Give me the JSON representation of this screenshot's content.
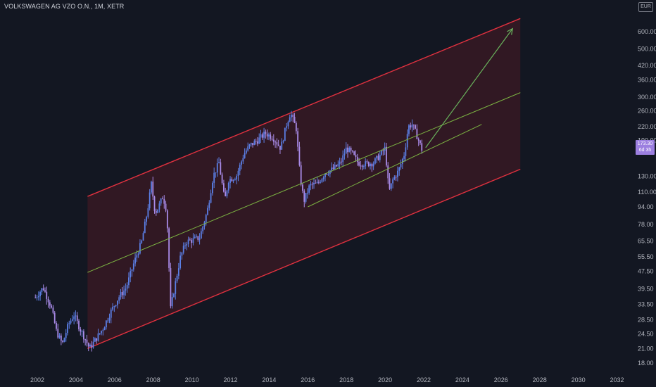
{
  "header": {
    "title": "VOLKSWAGEN AG VZO O.N., 1M, XETR",
    "currency": "EUR"
  },
  "last_price": {
    "value": "173.30",
    "countdown": "6d 3h"
  },
  "colors": {
    "background": "#131722",
    "candle": "#5b7fe6",
    "candle_hl": "#a98be8",
    "channel_line": "#e0313f",
    "channel_fill": "#4a1a24",
    "mid_line": "#7cb342",
    "arrow": "#69b25c",
    "axis_text": "#b2b5be",
    "badge": "#9c7fe0"
  },
  "chart_data": {
    "type": "candlestick",
    "title": "VOLKSWAGEN AG VZO O.N., 1M, XETR",
    "xlabel": "",
    "ylabel": "",
    "y_scale": "log",
    "ylim": [
      15.6,
      712
    ],
    "xlim": [
      2001.2,
      2033.2
    ],
    "x_ticks": [
      "2002",
      "2004",
      "2006",
      "2008",
      "2010",
      "2012",
      "2014",
      "2016",
      "2018",
      "2020",
      "2022",
      "2024",
      "2026",
      "2028",
      "2030",
      "2032"
    ],
    "y_ticks": [
      "18.00",
      "21.00",
      "24.50",
      "28.50",
      "33.50",
      "39.50",
      "47.50",
      "55.50",
      "65.50",
      "78.00",
      "94.00",
      "110.00",
      "130.00",
      "190.00",
      "220.00",
      "260.00",
      "300.00",
      "360.00",
      "420.00",
      "500.00",
      "600.00"
    ],
    "price_path": [
      [
        2001.9,
        36
      ],
      [
        2002.3,
        40
      ],
      [
        2002.7,
        33
      ],
      [
        2003.0,
        25
      ],
      [
        2003.3,
        22
      ],
      [
        2003.6,
        27
      ],
      [
        2003.9,
        30
      ],
      [
        2004.2,
        26
      ],
      [
        2004.5,
        23
      ],
      [
        2004.7,
        21
      ],
      [
        2005.0,
        23
      ],
      [
        2005.4,
        26
      ],
      [
        2005.8,
        31
      ],
      [
        2006.2,
        36
      ],
      [
        2006.6,
        40
      ],
      [
        2007.0,
        52
      ],
      [
        2007.4,
        65
      ],
      [
        2007.7,
        90
      ],
      [
        2007.9,
        120
      ],
      [
        2008.1,
        88
      ],
      [
        2008.3,
        95
      ],
      [
        2008.5,
        105
      ],
      [
        2008.7,
        90
      ],
      [
        2008.9,
        32
      ],
      [
        2009.1,
        40
      ],
      [
        2009.4,
        55
      ],
      [
        2009.7,
        65
      ],
      [
        2010.0,
        66
      ],
      [
        2010.4,
        68
      ],
      [
        2010.8,
        90
      ],
      [
        2011.1,
        130
      ],
      [
        2011.4,
        150
      ],
      [
        2011.7,
        100
      ],
      [
        2011.9,
        125
      ],
      [
        2012.3,
        130
      ],
      [
        2012.7,
        165
      ],
      [
        2013.0,
        180
      ],
      [
        2013.4,
        190
      ],
      [
        2013.8,
        205
      ],
      [
        2014.2,
        196
      ],
      [
        2014.6,
        175
      ],
      [
        2014.9,
        225
      ],
      [
        2015.1,
        255
      ],
      [
        2015.4,
        215
      ],
      [
        2015.6,
        130
      ],
      [
        2015.8,
        100
      ],
      [
        2016.1,
        118
      ],
      [
        2016.5,
        120
      ],
      [
        2016.9,
        135
      ],
      [
        2017.3,
        140
      ],
      [
        2017.7,
        150
      ],
      [
        2018.0,
        175
      ],
      [
        2018.3,
        165
      ],
      [
        2018.6,
        150
      ],
      [
        2019.0,
        148
      ],
      [
        2019.4,
        150
      ],
      [
        2019.8,
        165
      ],
      [
        2020.0,
        175
      ],
      [
        2020.2,
        110
      ],
      [
        2020.4,
        125
      ],
      [
        2020.7,
        138
      ],
      [
        2021.0,
        165
      ],
      [
        2021.2,
        220
      ],
      [
        2021.4,
        225
      ],
      [
        2021.6,
        205
      ],
      [
        2021.9,
        173
      ]
    ],
    "channel": {
      "upper": [
        [
          2004.6,
          105
        ],
        [
          2027.0,
          690
        ]
      ],
      "lower": [
        [
          2004.6,
          21
        ],
        [
          2027.0,
          140
        ]
      ],
      "mid_long": [
        [
          2004.6,
          47
        ],
        [
          2027.0,
          315
        ]
      ],
      "mid_short": [
        [
          2016.0,
          94
        ],
        [
          2025.0,
          225
        ]
      ]
    },
    "arrow": {
      "from": [
        2022.1,
        176
      ],
      "to": [
        2026.6,
        620
      ]
    },
    "last_price": 173.3
  }
}
